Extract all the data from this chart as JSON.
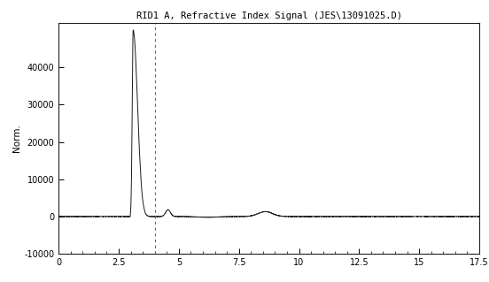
{
  "title": "RID1 A, Refractive Index Signal (JES\\13091025.D)",
  "ylabel": "Norm.",
  "xlabel": "",
  "xlim": [
    0,
    17.5
  ],
  "ylim": [
    -10000,
    52000
  ],
  "yticks": [
    -10000,
    0,
    10000,
    20000,
    30000,
    40000
  ],
  "xticks": [
    0,
    2.5,
    5,
    7.5,
    10,
    12.5,
    15,
    17.5
  ],
  "xtick_labels": [
    "0",
    "2.5",
    "5",
    "7.5",
    "10",
    "12.5",
    "15",
    "17.5"
  ],
  "dashed_line_x": 4.0,
  "background_color": "#ffffff",
  "line_color": "#1a1a1a",
  "title_fontsize": 7.5,
  "axis_fontsize": 7.5,
  "tick_fontsize": 7
}
